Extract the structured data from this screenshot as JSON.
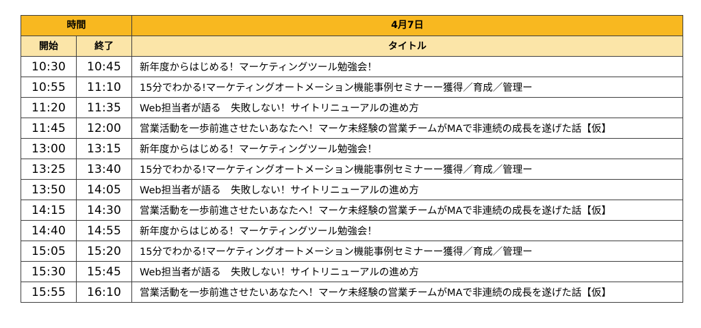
{
  "header": {
    "time_group": "時間",
    "date": "4月7日",
    "start": "開始",
    "end": "終了",
    "title": "タイトル"
  },
  "rows": [
    {
      "start": "10:30",
      "end": "10:45",
      "title": "新年度からはじめる！マーケティングツール勉強会！"
    },
    {
      "start": "10:55",
      "end": "11:10",
      "title": "15分でわかる!マーケティングオートメーション機能事例セミナーー獲得／育成／管理ー"
    },
    {
      "start": "11:20",
      "end": "11:35",
      "title": "Web担当者が語る　失敗しない！サイトリニューアルの進め方"
    },
    {
      "start": "11:45",
      "end": "12:00",
      "title": "営業活動を一歩前進させたいあなたへ！マーケ未経験の営業チームがMAで非連続の成長を遂げた話【仮】"
    },
    {
      "start": "13:00",
      "end": "13:15",
      "title": "新年度からはじめる！マーケティングツール勉強会！"
    },
    {
      "start": "13:25",
      "end": "13:40",
      "title": "15分でわかる!マーケティングオートメーション機能事例セミナーー獲得／育成／管理ー"
    },
    {
      "start": "13:50",
      "end": "14:05",
      "title": "Web担当者が語る　失敗しない！サイトリニューアルの進め方"
    },
    {
      "start": "14:15",
      "end": "14:30",
      "title": "営業活動を一歩前進させたいあなたへ！マーケ未経験の営業チームがMAで非連続の成長を遂げた話【仮】"
    },
    {
      "start": "14:40",
      "end": "14:55",
      "title": "新年度からはじめる！マーケティングツール勉強会！"
    },
    {
      "start": "15:05",
      "end": "15:20",
      "title": "15分でわかる!マーケティングオートメーション機能事例セミナーー獲得／育成／管理ー"
    },
    {
      "start": "15:30",
      "end": "15:45",
      "title": "Web担当者が語る　失敗しない！サイトリニューアルの進め方"
    },
    {
      "start": "15:55",
      "end": "16:10",
      "title": "営業活動を一歩前進させたいあなたへ！マーケ未経験の営業チームがMAで非連続の成長を遂げた話【仮】"
    }
  ],
  "colors": {
    "header_bg": "#f8b820",
    "subheader_bg": "#fbe5a8",
    "border": "#3c3c3c"
  }
}
